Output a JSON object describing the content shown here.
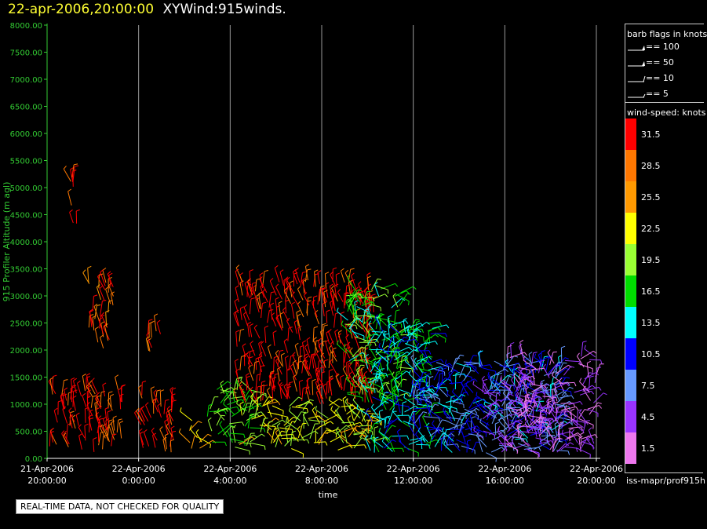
{
  "header": {
    "datetime": "22-apr-2006,20:00:00",
    "title": "XYWind:915winds."
  },
  "notice": "REAL-TIME DATA, NOT CHECKED FOR QUALITY",
  "legend": {
    "barb_title": "barb flags in knots",
    "barbs": [
      "== 100",
      "== 50",
      "== 10",
      "== 5"
    ],
    "speed_title": "wind-speed: knots",
    "speed_scale": [
      {
        "label": "31.5",
        "color": "#ff0000"
      },
      {
        "label": "28.5",
        "color": "#ff7700"
      },
      {
        "label": "25.5",
        "color": "#ff9900"
      },
      {
        "label": "22.5",
        "color": "#ffff00"
      },
      {
        "label": "19.5",
        "color": "#99ff33"
      },
      {
        "label": "16.5",
        "color": "#00dd00"
      },
      {
        "label": "13.5",
        "color": "#00ffff"
      },
      {
        "label": "10.5",
        "color": "#0000ff"
      },
      {
        "label": "7.5",
        "color": "#6699ff"
      },
      {
        "label": "4.5",
        "color": "#9933ff"
      },
      {
        "label": "1.5",
        "color": "#ee77ee"
      }
    ],
    "footer": "iss-mapr/prof915h"
  },
  "chart_data": {
    "type": "scatter",
    "title": "XYWind:915winds.",
    "ylabel": "915 Profiler Altitude (m agl)",
    "xlabel": "time",
    "ylim": [
      0,
      8000
    ],
    "yticks": [
      "0.00",
      "500.00",
      "1000.00",
      "1500.00",
      "2000.00",
      "2500.00",
      "3000.00",
      "3500.00",
      "4000.00",
      "4500.00",
      "5000.00",
      "5500.00",
      "6000.00",
      "6500.00",
      "7000.00",
      "7500.00",
      "8000.00"
    ],
    "xticks": [
      {
        "date": "21-Apr-2006",
        "time": "20:00:00"
      },
      {
        "date": "22-Apr-2006",
        "time": "0:00:00"
      },
      {
        "date": "22-Apr-2006",
        "time": "4:00:00"
      },
      {
        "date": "22-Apr-2006",
        "time": "8:00:00"
      },
      {
        "date": "22-Apr-2006",
        "time": "12:00:00"
      },
      {
        "date": "22-Apr-2006",
        "time": "16:00:00"
      },
      {
        "date": "22-Apr-2006",
        "time": "20:00:00"
      }
    ],
    "xlim_hours": [
      0,
      24
    ],
    "grid": "vertical",
    "legend": "right",
    "wind_clusters": [
      {
        "t": [
          0.1,
          3.3
        ],
        "alt": [
          100,
          1300
        ],
        "speed": 31
      },
      {
        "t": [
          1.0,
          1.3
        ],
        "alt": [
          4200,
          5300
        ],
        "speed": 31
      },
      {
        "t": [
          1.8,
          2.9
        ],
        "alt": [
          2000,
          3300
        ],
        "speed": 29
      },
      {
        "t": [
          4.1,
          5.6
        ],
        "alt": [
          100,
          1200
        ],
        "speed": 31
      },
      {
        "t": [
          4.3,
          5.0
        ],
        "alt": [
          1900,
          2400
        ],
        "speed": 29
      },
      {
        "t": [
          6.2,
          6.8
        ],
        "alt": [
          100,
          800
        ],
        "speed": 24
      },
      {
        "t": [
          7.0,
          9.0
        ],
        "alt": [
          200,
          1300
        ],
        "speed": 18
      },
      {
        "t": [
          8.3,
          14.3
        ],
        "alt": [
          1000,
          3300
        ],
        "speed": 31
      },
      {
        "t": [
          8.3,
          14.3
        ],
        "alt": [
          150,
          1000
        ],
        "speed": 22
      },
      {
        "t": [
          13.0,
          15.5
        ],
        "alt": [
          1000,
          3200
        ],
        "speed": 17
      },
      {
        "t": [
          14.0,
          17.0
        ],
        "alt": [
          100,
          2500
        ],
        "speed": 14
      },
      {
        "t": [
          16.0,
          22.5
        ],
        "alt": [
          100,
          1800
        ],
        "speed": 10
      },
      {
        "t": [
          19.0,
          22.5
        ],
        "alt": [
          100,
          1300
        ],
        "speed": 6
      },
      {
        "t": [
          20.0,
          24.0
        ],
        "alt": [
          100,
          1900
        ],
        "speed": 3
      }
    ]
  }
}
